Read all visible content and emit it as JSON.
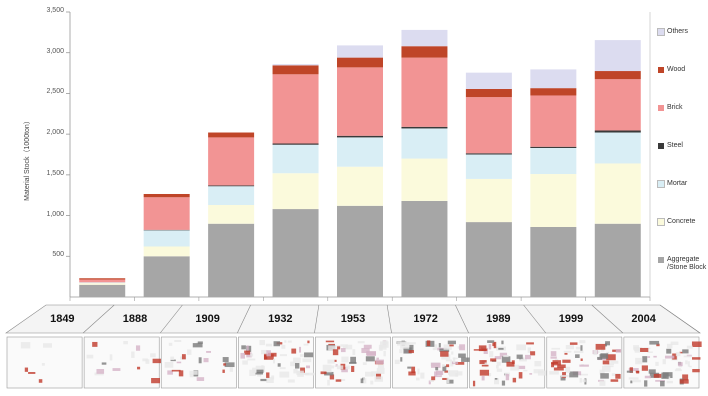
{
  "chart_data": {
    "type": "bar",
    "stacked": true,
    "title": "",
    "ylabel": "Material Stock（1000ton）",
    "ylim": [
      0,
      3500
    ],
    "yticks": [
      "500",
      "1,000",
      "1,500",
      "2,000",
      "2,500",
      "3,000",
      "3,500"
    ],
    "categories": [
      "1849",
      "1888",
      "1909",
      "1932",
      "1953",
      "1972",
      "1989",
      "1999",
      "2004"
    ],
    "series": [
      {
        "name": "Aggregate /Stone Block",
        "color": "#a6a6a6",
        "values": [
          150,
          500,
          900,
          1080,
          1120,
          1180,
          920,
          860,
          900
        ]
      },
      {
        "name": "Concrete",
        "color": "#fbfadc",
        "values": [
          20,
          120,
          230,
          440,
          480,
          520,
          530,
          650,
          740
        ]
      },
      {
        "name": "Mortar",
        "color": "#d9eef5",
        "values": [
          10,
          200,
          230,
          350,
          360,
          370,
          300,
          320,
          380
        ]
      },
      {
        "name": "Steel",
        "color": "#3a3a3a",
        "values": [
          0,
          5,
          10,
          15,
          20,
          20,
          15,
          15,
          25
        ]
      },
      {
        "name": "Brick",
        "color": "#f29494",
        "values": [
          35,
          400,
          590,
          850,
          840,
          850,
          690,
          630,
          630
        ]
      },
      {
        "name": "Wood",
        "color": "#bf4528",
        "values": [
          15,
          40,
          60,
          110,
          120,
          140,
          100,
          90,
          100
        ]
      },
      {
        "name": "Others",
        "color": "#dcdcf0",
        "values": [
          0,
          0,
          0,
          15,
          150,
          200,
          200,
          230,
          380
        ]
      }
    ],
    "legend_position": "right",
    "legend_order": [
      "Others",
      "Wood",
      "Brick",
      "Steel",
      "Mortar",
      "Concrete",
      "Aggregate /Stone Block"
    ],
    "grid": false
  },
  "map_strip": {
    "description_colors": [
      "#e8e8e8",
      "#c0392b",
      "#7a7a7a",
      "#d6b4c8"
    ],
    "patch_counts": [
      6,
      16,
      28,
      55,
      60,
      62,
      58,
      60,
      62
    ]
  }
}
